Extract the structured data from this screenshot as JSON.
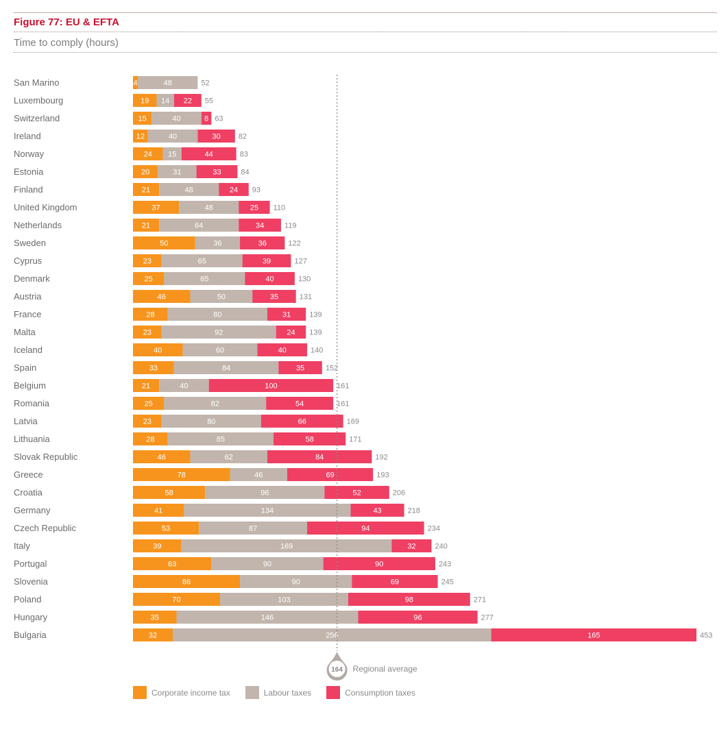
{
  "colors": {
    "corporate": "#f7941d",
    "labour": "#c1b5ad",
    "consumption": "#ef3f63",
    "text": "#6b6b6b",
    "title": "#c8102e"
  },
  "chart_data": {
    "type": "bar",
    "orientation": "horizontal",
    "stacked": true,
    "title": "Figure 77: EU & EFTA",
    "subtitle": "Time to comply (hours)",
    "categories": [
      "San Marino",
      "Luxembourg",
      "Switzerland",
      "Ireland",
      "Norway",
      "Estonia",
      "Finland",
      "United Kingdom",
      "Netherlands",
      "Sweden",
      "Cyprus",
      "Denmark",
      "Austria",
      "France",
      "Malta",
      "Iceland",
      "Spain",
      "Belgium",
      "Romania",
      "Latvia",
      "Lithuania",
      "Slovak Republic",
      "Greece",
      "Croatia",
      "Germany",
      "Czech Republic",
      "Italy",
      "Portugal",
      "Slovenia",
      "Poland",
      "Hungary",
      "Bulgaria"
    ],
    "series": [
      {
        "name": "Corporate income tax",
        "key": "corporate",
        "values": [
          4,
          19,
          15,
          12,
          24,
          20,
          21,
          37,
          21,
          50,
          23,
          25,
          46,
          28,
          23,
          40,
          33,
          21,
          25,
          23,
          28,
          46,
          78,
          58,
          41,
          53,
          39,
          63,
          86,
          70,
          35,
          32
        ]
      },
      {
        "name": "Labour taxes",
        "key": "labour",
        "values": [
          48,
          14,
          40,
          40,
          15,
          31,
          48,
          48,
          64,
          36,
          65,
          65,
          50,
          80,
          92,
          60,
          84,
          40,
          82,
          80,
          85,
          62,
          46,
          96,
          134,
          87,
          169,
          90,
          90,
          103,
          146,
          256
        ]
      },
      {
        "name": "Consumption taxes",
        "key": "consumption",
        "values": [
          null,
          22,
          8,
          30,
          44,
          33,
          24,
          25,
          34,
          36,
          39,
          40,
          35,
          31,
          24,
          40,
          35,
          100,
          54,
          66,
          58,
          84,
          69,
          52,
          43,
          94,
          32,
          90,
          69,
          98,
          96,
          165
        ]
      }
    ],
    "totals": [
      52,
      55,
      63,
      82,
      83,
      84,
      93,
      110,
      119,
      122,
      127,
      130,
      131,
      139,
      139,
      140,
      152,
      161,
      161,
      169,
      171,
      192,
      193,
      206,
      218,
      234,
      240,
      243,
      245,
      271,
      277,
      453
    ],
    "xlim": [
      0,
      453
    ],
    "reference_line": {
      "value": 164,
      "label": "Regional average"
    },
    "legend": [
      "Corporate income tax",
      "Labour taxes",
      "Consumption taxes"
    ],
    "legend_position": "bottom-left"
  }
}
